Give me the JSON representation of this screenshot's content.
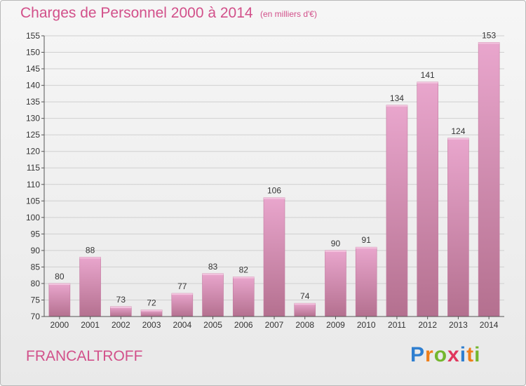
{
  "header": {
    "title": "Charges de Personnel 2000 à 2014",
    "subtitle": "(en milliers d'€)"
  },
  "footer": {
    "commune": "FRANCALTROFF",
    "logo": {
      "text": "Proxiti",
      "letters": [
        "P",
        "r",
        "o",
        "x",
        "i",
        "t",
        "i"
      ],
      "colors": [
        "#2f7fd0",
        "#ef7f1a",
        "#74b62e",
        "#e0365c",
        "#2f7fd0",
        "#ef7f1a",
        "#74b62e"
      ]
    }
  },
  "colors": {
    "accent": "#d2508a",
    "bar_top": "#e9a6cd",
    "bar_bottom": "#b4708f",
    "grid": "#cfcfcf"
  },
  "chart_data": {
    "type": "bar",
    "title": "Charges de Personnel 2000 à 2014",
    "subtitle": "(en milliers d'€)",
    "categories": [
      "2000",
      "2001",
      "2002",
      "2003",
      "2004",
      "2005",
      "2006",
      "2007",
      "2008",
      "2009",
      "2010",
      "2011",
      "2012",
      "2013",
      "2014"
    ],
    "values": [
      80,
      88,
      73,
      72,
      77,
      83,
      82,
      106,
      74,
      90,
      91,
      134,
      141,
      124,
      153
    ],
    "ylim": [
      70,
      155
    ],
    "yticks": [
      70,
      75,
      80,
      85,
      90,
      95,
      100,
      105,
      110,
      115,
      120,
      125,
      130,
      135,
      140,
      145,
      150,
      155
    ],
    "grid": true,
    "data_labels": true
  }
}
